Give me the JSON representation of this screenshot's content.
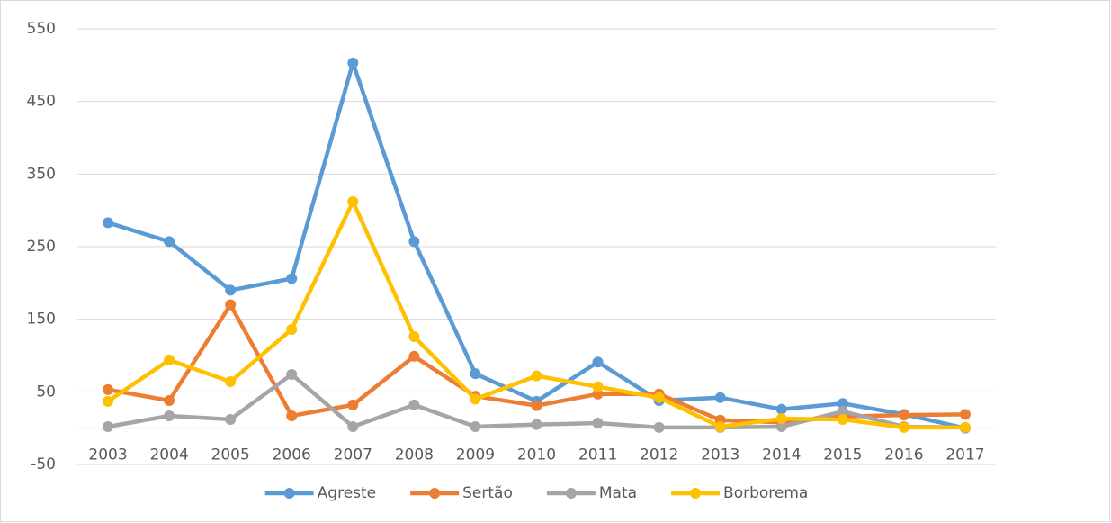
{
  "chart_data": {
    "type": "line",
    "categories": [
      "2003",
      "2004",
      "2005",
      "2006",
      "2007",
      "2008",
      "2009",
      "2010",
      "2011",
      "2012",
      "2013",
      "2014",
      "2015",
      "2016",
      "2017"
    ],
    "series": [
      {
        "name": "Agreste",
        "color": "#5b9bd5",
        "values": [
          283,
          257,
          190,
          206,
          503,
          257,
          75,
          37,
          91,
          38,
          42,
          26,
          34,
          19,
          0
        ]
      },
      {
        "name": "Sertão",
        "color": "#ed7d31",
        "values": [
          53,
          38,
          170,
          17,
          32,
          99,
          44,
          31,
          47,
          47,
          11,
          8,
          16,
          18,
          19
        ]
      },
      {
        "name": "Mata",
        "color": "#a5a5a5",
        "values": [
          2,
          17,
          12,
          74,
          2,
          32,
          2,
          5,
          7,
          1,
          1,
          2,
          23,
          2,
          1
        ]
      },
      {
        "name": "Borborema",
        "color": "#ffc000",
        "values": [
          37,
          94,
          64,
          136,
          312,
          126,
          40,
          72,
          57,
          42,
          2,
          13,
          12,
          1,
          1
        ]
      }
    ],
    "ylim": [
      -50,
      550
    ],
    "yticks": [
      -50,
      50,
      150,
      250,
      350,
      450,
      550
    ],
    "grid": true,
    "legend": "bottom"
  }
}
